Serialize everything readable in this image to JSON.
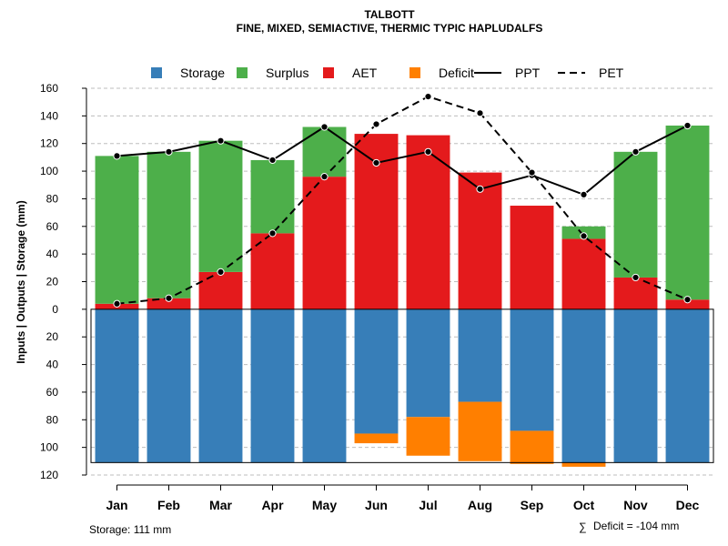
{
  "chart_data": {
    "type": "bar",
    "title": "TALBOTT",
    "subtitle": "FINE, MIXED, SEMIACTIVE, THERMIC TYPIC HAPLUDALFS",
    "ylabel": "Inputs | Outputs | Storage    (mm)",
    "xlabel": "",
    "ylim": [
      -120,
      160
    ],
    "y_ticks": [
      160,
      140,
      120,
      100,
      80,
      60,
      40,
      20,
      0,
      -20,
      -40,
      -60,
      -80,
      -100,
      -120
    ],
    "y_tick_labels": [
      "160",
      "140",
      "120",
      "100",
      "80",
      "60",
      "40",
      "20",
      "0",
      "20",
      "40",
      "60",
      "80",
      "100",
      "120"
    ],
    "grid": true,
    "legend_position": "top",
    "categories": [
      "Jan",
      "Feb",
      "Mar",
      "Apr",
      "May",
      "Jun",
      "Jul",
      "Aug",
      "Sep",
      "Oct",
      "Nov",
      "Dec"
    ],
    "legend": [
      {
        "name": "Storage",
        "kind": "square",
        "color": "#377EB8"
      },
      {
        "name": "Surplus",
        "kind": "square",
        "color": "#4DAF4A"
      },
      {
        "name": "AET",
        "kind": "square",
        "color": "#E41A1C"
      },
      {
        "name": "Deficit",
        "kind": "square",
        "color": "#FF7F00"
      },
      {
        "name": "PPT",
        "kind": "solid-line",
        "color": "#000000"
      },
      {
        "name": "PET",
        "kind": "dashed-line",
        "color": "#000000"
      }
    ],
    "series": [
      {
        "name": "AET",
        "color": "#E41A1C",
        "values": [
          4,
          8,
          27,
          55,
          96,
          127,
          126,
          99,
          75,
          51,
          23,
          7
        ]
      },
      {
        "name": "Surplus",
        "color": "#4DAF4A",
        "values": [
          107,
          106,
          95,
          53,
          36,
          0,
          0,
          0,
          0,
          9,
          91,
          126
        ]
      },
      {
        "name": "Storage",
        "color": "#377EB8",
        "values": [
          111,
          111,
          111,
          111,
          111,
          90,
          78,
          67,
          88,
          111,
          111,
          111
        ]
      },
      {
        "name": "Deficit",
        "color": "#FF7F00",
        "values": [
          0,
          0,
          0,
          0,
          0,
          7,
          28,
          43,
          24,
          3,
          0,
          0
        ]
      },
      {
        "name": "PPT",
        "color": "#000000",
        "values": [
          111,
          114,
          122,
          108,
          132,
          106,
          114,
          87,
          97,
          83,
          114,
          133
        ]
      },
      {
        "name": "PET",
        "color": "#000000",
        "values": [
          4,
          8,
          27,
          55,
          96,
          134,
          154,
          142,
          99,
          53,
          23,
          7
        ]
      }
    ],
    "storage_capacity": 111
  },
  "footnotes": {
    "storage": "Storage: 111 mm",
    "deficit_symbol": "∑",
    "deficit": "Deficit = -104 mm"
  }
}
